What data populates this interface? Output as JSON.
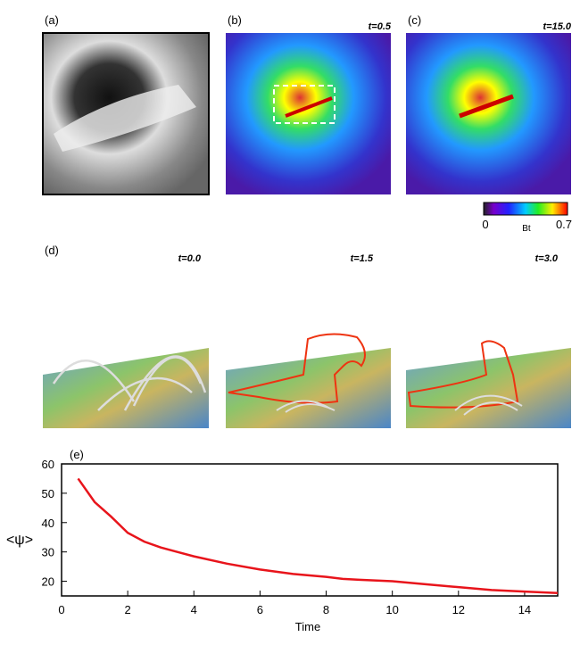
{
  "panels": [
    {
      "label": "(a)"
    },
    {
      "label": "(b)",
      "time": "t=0.5"
    },
    {
      "label": "(c)",
      "time": "t=15.0"
    }
  ],
  "colorbar": {
    "min": 0,
    "max": 0.7,
    "label": "Bt"
  },
  "panel_d": {
    "label": "(d)",
    "times": [
      "t=0.0",
      "t=1.5",
      "t=3.0"
    ]
  },
  "chart_data": {
    "type": "line",
    "title": "(e)",
    "x_label": "Time",
    "y_label": "<ψ>",
    "x": [
      0.5,
      1,
      1.5,
      2,
      2.5,
      3,
      3.5,
      4,
      5,
      6,
      7,
      8,
      8.5,
      9,
      10,
      11,
      12,
      13,
      14,
      15
    ],
    "series": [
      {
        "name": "<ψ>",
        "color": "#e8141b",
        "values": [
          55,
          47,
          42,
          36.5,
          33.5,
          31.5,
          30,
          28.5,
          26,
          24,
          22.5,
          21.5,
          20.8,
          20.5,
          20,
          19,
          18,
          17,
          16.5,
          16
        ]
      }
    ],
    "xlim": [
      0,
      15
    ],
    "ylim": [
      15,
      60
    ],
    "xticks": [
      0,
      2,
      4,
      6,
      8,
      10,
      12,
      14
    ],
    "yticks": [
      20,
      30,
      40,
      50,
      60
    ]
  }
}
